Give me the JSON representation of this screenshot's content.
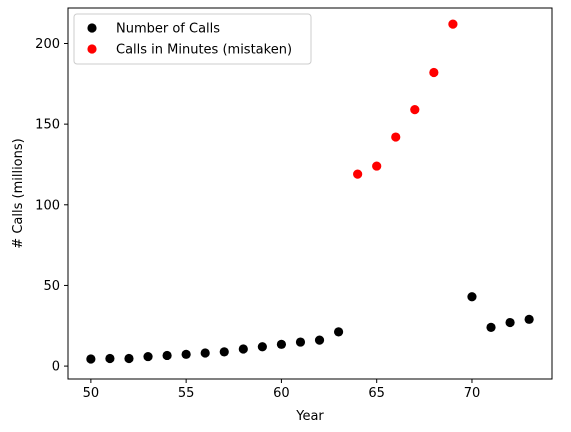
{
  "chart_data": {
    "type": "scatter",
    "xlabel": "Year",
    "ylabel": "# Calls (millions)",
    "xlim": [
      48.8,
      74.2
    ],
    "ylim": [
      -8,
      222
    ],
    "xticks": [
      50,
      55,
      60,
      65,
      70
    ],
    "yticks": [
      0,
      50,
      100,
      150,
      200
    ],
    "legend_position": "top-left",
    "grid": false,
    "series": [
      {
        "name": "Number of Calls",
        "color": "#000000",
        "x": [
          50,
          51,
          52,
          53,
          54,
          55,
          56,
          57,
          58,
          59,
          60,
          61,
          62,
          63,
          70,
          71,
          72,
          73
        ],
        "y": [
          4.4,
          4.7,
          4.7,
          5.9,
          6.6,
          7.3,
          8.1,
          8.8,
          10.6,
          12.0,
          13.5,
          14.9,
          16.1,
          21.2,
          43.0,
          24.0,
          27.0,
          29.0
        ]
      },
      {
        "name": "Calls in Minutes (mistaken)",
        "color": "#ff0000",
        "x": [
          64,
          65,
          66,
          67,
          68,
          69
        ],
        "y": [
          119,
          124,
          142,
          159,
          182,
          212
        ]
      }
    ]
  }
}
